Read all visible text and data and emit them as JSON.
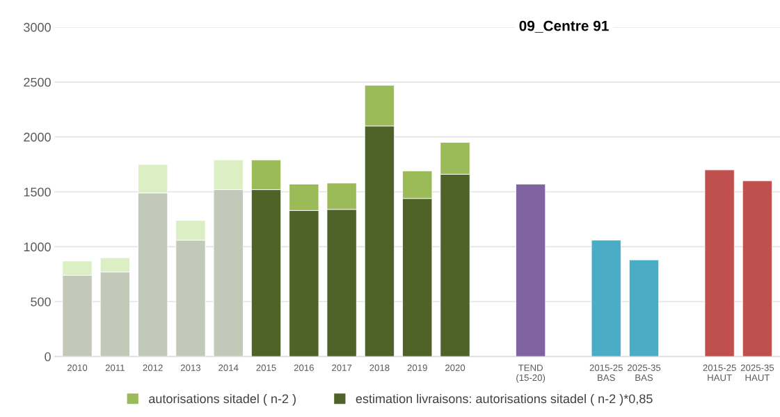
{
  "chart_data": {
    "type": "bar",
    "title": "09_Centre 91",
    "stacked": true,
    "categories": [
      "2010",
      "2011",
      "2012",
      "2013",
      "2014",
      "2015",
      "2016",
      "2017",
      "2018",
      "2019",
      "2020",
      null,
      "TEND\n(15-20)",
      null,
      "2015-25\nBAS",
      "2025-35\nBAS",
      null,
      "2015-25\nHAUT",
      "2025-35\nHAUT"
    ],
    "series": [
      {
        "name": "estimation livraisons: autorisations sitadel ( n-2 )*0,85",
        "color": "#4f6228",
        "colors": [
          "#c3c9b9",
          "#c3c9b9",
          "#c3c9b9",
          "#c3c9b9",
          "#c3c9b9",
          "#4f6228",
          "#4f6228",
          "#4f6228",
          "#4f6228",
          "#4f6228",
          "#4f6228",
          null,
          null,
          null,
          null,
          null,
          null,
          null,
          null
        ],
        "values": [
          740,
          770,
          1490,
          1060,
          1520,
          1520,
          1330,
          1340,
          2100,
          1440,
          1660,
          null,
          null,
          null,
          null,
          null,
          null,
          null,
          null
        ]
      },
      {
        "name": "autorisations sitadel ( n-2 )",
        "color": "#9bbb59",
        "colors": [
          "#dcefc4",
          "#dcefc4",
          "#dcefc4",
          "#dcefc4",
          "#dcefc4",
          "#9bbb59",
          "#9bbb59",
          "#9bbb59",
          "#9bbb59",
          "#9bbb59",
          "#9bbb59",
          null,
          null,
          null,
          null,
          null,
          null,
          null,
          null
        ],
        "values": [
          130,
          130,
          260,
          180,
          270,
          270,
          240,
          240,
          370,
          250,
          290,
          null,
          null,
          null,
          null,
          null,
          null,
          null,
          null
        ]
      },
      {
        "color": "#8064a2",
        "values": [
          null,
          null,
          null,
          null,
          null,
          null,
          null,
          null,
          null,
          null,
          null,
          null,
          1570,
          null,
          null,
          null,
          null,
          null,
          null
        ]
      },
      {
        "color": "#4bacc6",
        "values": [
          null,
          null,
          null,
          null,
          null,
          null,
          null,
          null,
          null,
          null,
          null,
          null,
          null,
          null,
          1060,
          880,
          null,
          null,
          null
        ]
      },
      {
        "color": "#c0504d",
        "values": [
          null,
          null,
          null,
          null,
          null,
          null,
          null,
          null,
          null,
          null,
          null,
          null,
          null,
          null,
          null,
          null,
          null,
          1700,
          1600
        ]
      }
    ],
    "ylim": [
      0,
      3000
    ],
    "yticks": [
      0,
      500,
      1000,
      1500,
      2000,
      2500,
      3000
    ],
    "grid": "y",
    "legend": "bottom"
  }
}
